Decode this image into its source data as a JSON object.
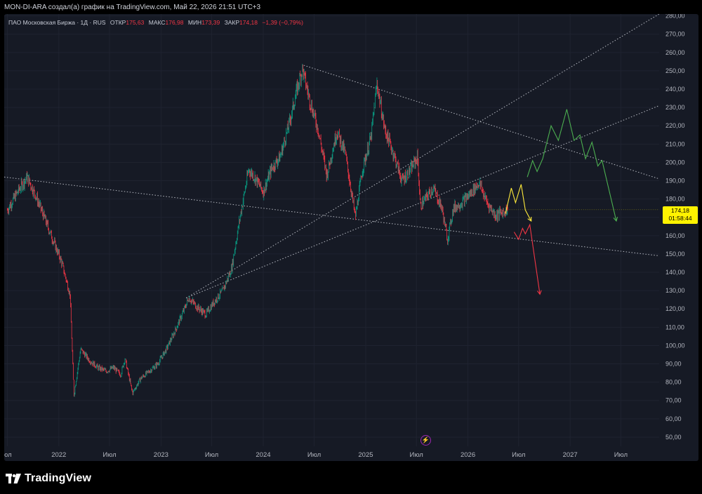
{
  "header": {
    "caption": "MON-DI-ARA создал(а) график на TradingView.com, Май 22, 2026 21:51 UTC+3"
  },
  "legend": {
    "symbol": "ПАО Московская Биржа · 1Д · RUS",
    "open_label": "ОТКР",
    "open_value": "175,63",
    "high_label": "МАКС",
    "high_value": "176,98",
    "low_label": "МИН",
    "low_value": "173,39",
    "close_label": "ЗАКР",
    "close_value": "174,18",
    "change": "−1,39 (−0,79%)"
  },
  "price_label": {
    "price": "174,18",
    "countdown": "01:58:44"
  },
  "branding": {
    "logo_text": "TradingView"
  },
  "colors": {
    "background": "#161a25",
    "up_candle": "#089981",
    "down_candle": "#f23645",
    "current_price": "#fff200",
    "scenario_yellow": "#ffeb3b",
    "scenario_green": "#4caf50",
    "scenario_red": "#f23645"
  },
  "icons": [
    "lightning-icon",
    "tradingview-logo-icon"
  ],
  "chart_data": {
    "type": "candlestick",
    "y_axis": {
      "position": "right",
      "range": [
        45,
        281
      ],
      "ticks": [
        "50,00",
        "60,00",
        "70,00",
        "80,00",
        "90,00",
        "100,00",
        "110,00",
        "120,00",
        "130,00",
        "140,00",
        "150,00",
        "160,00",
        "170,00",
        "180,00",
        "190,00",
        "200,00",
        "210,00",
        "220,00",
        "230,00",
        "240,00",
        "250,00",
        "260,00",
        "270,00",
        "280,00"
      ]
    },
    "x_axis": {
      "range": [
        "2021-06-20",
        "2027-11-15"
      ],
      "ticks": [
        {
          "label": "юл",
          "date": "2021-07-01"
        },
        {
          "label": "2022",
          "date": "2022-01-01"
        },
        {
          "label": "Июл",
          "date": "2022-07-01"
        },
        {
          "label": "2023",
          "date": "2023-01-01"
        },
        {
          "label": "Июл",
          "date": "2023-07-01"
        },
        {
          "label": "2024",
          "date": "2024-01-01"
        },
        {
          "label": "Июл",
          "date": "2024-07-01"
        },
        {
          "label": "2025",
          "date": "2025-01-01"
        },
        {
          "label": "Июл",
          "date": "2025-07-01"
        },
        {
          "label": "2026",
          "date": "2026-01-01"
        },
        {
          "label": "Июл",
          "date": "2026-07-01"
        },
        {
          "label": "2027",
          "date": "2027-01-01"
        },
        {
          "label": "Июл",
          "date": "2027-07-01"
        }
      ]
    },
    "price_path": [
      [
        "2021-07-01",
        174
      ],
      [
        "2021-08-15",
        186
      ],
      [
        "2021-09-10",
        192
      ],
      [
        "2021-10-10",
        182
      ],
      [
        "2021-11-10",
        170
      ],
      [
        "2021-12-10",
        158
      ],
      [
        "2022-01-10",
        146
      ],
      [
        "2022-02-10",
        128
      ],
      [
        "2022-02-24",
        73
      ],
      [
        "2022-03-20",
        98
      ],
      [
        "2022-04-20",
        92
      ],
      [
        "2022-05-20",
        88
      ],
      [
        "2022-06-20",
        86
      ],
      [
        "2022-07-15",
        88
      ],
      [
        "2022-08-10",
        84
      ],
      [
        "2022-08-25",
        93
      ],
      [
        "2022-09-21",
        74
      ],
      [
        "2022-10-20",
        82
      ],
      [
        "2022-11-20",
        86
      ],
      [
        "2022-12-20",
        90
      ],
      [
        "2023-01-20",
        98
      ],
      [
        "2023-02-20",
        108
      ],
      [
        "2023-03-20",
        118
      ],
      [
        "2023-04-10",
        126
      ],
      [
        "2023-05-10",
        121
      ],
      [
        "2023-06-10",
        117
      ],
      [
        "2023-07-10",
        124
      ],
      [
        "2023-08-10",
        130
      ],
      [
        "2023-09-10",
        142
      ],
      [
        "2023-10-10",
        170
      ],
      [
        "2023-11-10",
        196
      ],
      [
        "2023-12-01",
        192
      ],
      [
        "2024-01-01",
        184
      ],
      [
        "2024-02-01",
        197
      ],
      [
        "2024-03-01",
        203
      ],
      [
        "2024-04-01",
        220
      ],
      [
        "2024-05-01",
        240
      ],
      [
        "2024-05-20",
        251
      ],
      [
        "2024-06-15",
        234
      ],
      [
        "2024-07-15",
        218
      ],
      [
        "2024-08-15",
        193
      ],
      [
        "2024-09-20",
        217
      ],
      [
        "2024-10-20",
        205
      ],
      [
        "2024-11-25",
        170
      ],
      [
        "2024-12-20",
        196
      ],
      [
        "2025-01-20",
        214
      ],
      [
        "2025-02-10",
        243
      ],
      [
        "2025-03-10",
        218
      ],
      [
        "2025-04-10",
        205
      ],
      [
        "2025-05-10",
        190
      ],
      [
        "2025-06-10",
        196
      ],
      [
        "2025-07-05",
        203
      ],
      [
        "2025-07-15",
        176
      ],
      [
        "2025-08-10",
        182
      ],
      [
        "2025-08-30",
        186
      ],
      [
        "2025-09-30",
        175
      ],
      [
        "2025-10-20",
        158
      ],
      [
        "2025-11-10",
        175
      ],
      [
        "2025-12-10",
        178
      ],
      [
        "2026-01-10",
        183
      ],
      [
        "2026-02-10",
        189
      ],
      [
        "2026-03-10",
        178
      ],
      [
        "2026-04-10",
        171
      ],
      [
        "2026-05-22",
        174.18
      ]
    ],
    "last_bar": {
      "date": "2026-05-22",
      "open": 175.63,
      "high": 176.98,
      "low": 173.39,
      "close": 174.18
    },
    "trend_lines": [
      {
        "style": "dotted",
        "from": [
          "2021-06-20",
          192
        ],
        "to": [
          "2027-11-15",
          149
        ]
      },
      {
        "style": "dotted",
        "from": [
          "2024-05-25",
          253
        ],
        "to": [
          "2027-11-15",
          191
        ]
      },
      {
        "style": "dotted",
        "from": [
          "2023-04-01",
          126
        ],
        "to": [
          "2027-11-15",
          281
        ]
      },
      {
        "style": "dotted",
        "from": [
          "2023-04-01",
          126
        ],
        "to": [
          "2027-11-15",
          231
        ]
      }
    ],
    "scenarios": [
      {
        "color": "yellow",
        "path": [
          [
            "2026-05-15",
            172
          ],
          [
            "2026-06-05",
            186
          ],
          [
            "2026-06-20",
            178
          ],
          [
            "2026-07-10",
            188
          ],
          [
            "2026-07-25",
            174
          ],
          [
            "2026-08-15",
            168
          ]
        ]
      },
      {
        "color": "green",
        "path": [
          [
            "2026-08-01",
            192
          ],
          [
            "2026-08-20",
            201
          ],
          [
            "2026-09-05",
            195
          ],
          [
            "2026-09-25",
            202
          ],
          [
            "2026-10-25",
            220
          ],
          [
            "2026-11-20",
            212
          ],
          [
            "2026-12-20",
            229
          ],
          [
            "2027-01-15",
            212
          ],
          [
            "2027-02-05",
            215
          ],
          [
            "2027-02-25",
            202
          ],
          [
            "2027-03-20",
            211
          ],
          [
            "2027-04-10",
            198
          ],
          [
            "2027-04-25",
            201
          ],
          [
            "2027-06-15",
            168
          ]
        ]
      },
      {
        "color": "red",
        "path": [
          [
            "2026-06-15",
            162
          ],
          [
            "2026-07-01",
            158
          ],
          [
            "2026-07-15",
            164
          ],
          [
            "2026-07-25",
            161
          ],
          [
            "2026-08-10",
            166
          ],
          [
            "2026-09-15",
            128
          ]
        ]
      }
    ]
  }
}
